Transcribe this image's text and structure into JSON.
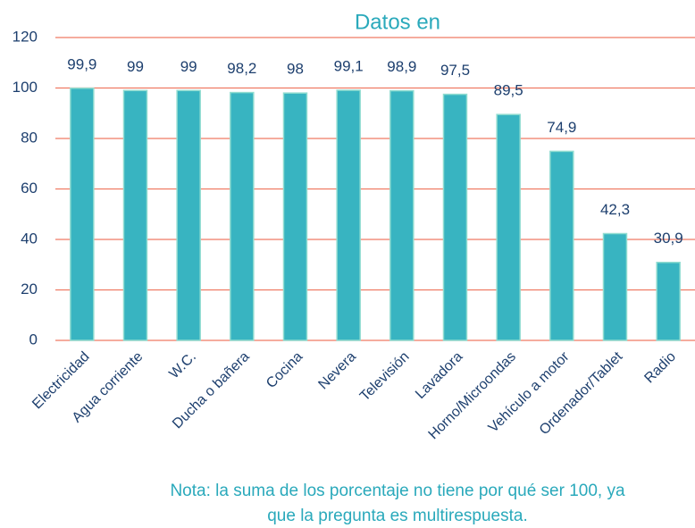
{
  "chart_data": {
    "type": "bar",
    "subtitle": "Datos en",
    "categories": [
      "Electricidad",
      "Agua corriente",
      "W.C.",
      "Ducha o bañera",
      "Cocina",
      "Nevera",
      "Televisión",
      "Lavadora",
      "Horno/Microondas",
      "Vehículo a motor",
      "Ordenador/Tablet",
      "Radio"
    ],
    "values": [
      99.9,
      99,
      99,
      98.2,
      98,
      99.1,
      98.9,
      97.5,
      89.5,
      74.9,
      42.3,
      30.9
    ],
    "value_labels": [
      "99,9",
      "99",
      "99",
      "98,2",
      "98",
      "99,1",
      "98,9",
      "97,5",
      "89,5",
      "74,9",
      "42,3",
      "30,9"
    ],
    "color": "#38b4c1",
    "ylim": [
      0,
      120
    ],
    "yticks": [
      0,
      20,
      40,
      60,
      80,
      100,
      120
    ],
    "grid": true,
    "note": [
      "Nota: la suma de los porcentaje no tiene por qué ser 100, ya",
      "que la pregunta es multirespuesta."
    ]
  }
}
